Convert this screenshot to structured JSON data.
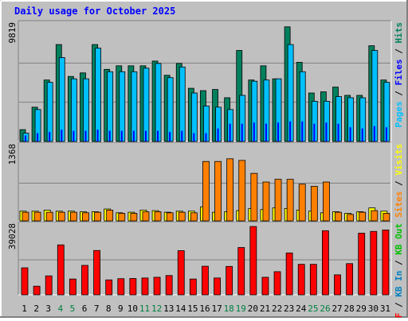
{
  "title": "Daily usage for October 2025",
  "colors": {
    "background": "#C0C0C0",
    "title": "#0000FF",
    "hits": "#00805C",
    "files": "#0000FF",
    "pages": "#00C0FF",
    "visits": "#FFFF00",
    "sites": "#FF8000",
    "kb_in": "#00C000",
    "kb_out": "#0080C0",
    "kbytes": "#FF0000",
    "weekend_day": "#008040",
    "weekday": "#000000"
  },
  "chart_data": [
    {
      "type": "bar",
      "panel": "hits-files-pages",
      "y_tick_label": "9819",
      "ylim": [
        0,
        9819
      ],
      "grid": true,
      "legend_labels": [
        "Pages",
        "Files",
        "Hits"
      ],
      "categories": [
        "1",
        "2",
        "3",
        "4",
        "5",
        "6",
        "7",
        "8",
        "9",
        "10",
        "11",
        "12",
        "13",
        "14",
        "15",
        "16",
        "17",
        "18",
        "19",
        "20",
        "21",
        "22",
        "23",
        "24",
        "25",
        "26",
        "27",
        "28",
        "29",
        "30",
        "31"
      ],
      "series": [
        {
          "name": "Hits",
          "values": [
            1000,
            2900,
            5200,
            8200,
            5500,
            5800,
            8200,
            6100,
            6400,
            6400,
            6400,
            6800,
            5600,
            6600,
            4500,
            4300,
            4400,
            3700,
            7700,
            5200,
            6400,
            5300,
            9700,
            6700,
            4100,
            4200,
            4600,
            3900,
            3900,
            8100,
            5200
          ]
        },
        {
          "name": "Files",
          "values": [
            500,
            700,
            800,
            1000,
            900,
            900,
            1000,
            900,
            900,
            900,
            900,
            900,
            800,
            900,
            700,
            700,
            1100,
            1500,
            1500,
            1600,
            1500,
            1600,
            1700,
            1700,
            1500,
            1600,
            1500,
            1200,
            1100,
            1300,
            1200
          ]
        },
        {
          "name": "Pages",
          "values": [
            700,
            2700,
            5000,
            7100,
            5300,
            5300,
            7900,
            5900,
            5900,
            5900,
            6200,
            6600,
            5400,
            6300,
            4100,
            3000,
            2900,
            2700,
            3900,
            5100,
            5200,
            5300,
            8200,
            5900,
            3400,
            3400,
            3800,
            3700,
            3700,
            7700,
            5000
          ]
        }
      ]
    },
    {
      "type": "bar",
      "panel": "visits-sites",
      "y_tick_label": "1368",
      "ylim": [
        0,
        1368
      ],
      "grid": true,
      "legend_labels": [
        "Sites",
        "Visits"
      ],
      "categories": [
        "1",
        "2",
        "3",
        "4",
        "5",
        "6",
        "7",
        "8",
        "9",
        "10",
        "11",
        "12",
        "13",
        "14",
        "15",
        "16",
        "17",
        "18",
        "19",
        "20",
        "21",
        "22",
        "23",
        "24",
        "25",
        "26",
        "27",
        "28",
        "29",
        "30",
        "31"
      ],
      "series": [
        {
          "name": "Visits",
          "values": [
            180,
            180,
            200,
            180,
            180,
            170,
            170,
            220,
            150,
            160,
            200,
            190,
            160,
            180,
            180,
            260,
            160,
            170,
            190,
            230,
            210,
            240,
            230,
            200,
            180,
            150,
            170,
            140,
            170,
            240,
            180
          ]
        },
        {
          "name": "Sites",
          "values": [
            160,
            160,
            160,
            160,
            160,
            150,
            160,
            200,
            140,
            140,
            170,
            170,
            150,
            160,
            150,
            1100,
            1100,
            1150,
            1120,
            880,
            720,
            770,
            770,
            680,
            640,
            720,
            160,
            120,
            160,
            190,
            140
          ]
        }
      ]
    },
    {
      "type": "bar",
      "panel": "kbytes",
      "y_tick_label": "39028",
      "ylim": [
        0,
        39028
      ],
      "grid": true,
      "legend_labels": [
        "KB F",
        "KB In",
        "KB Out"
      ],
      "categories": [
        "1",
        "2",
        "3",
        "4",
        "5",
        "6",
        "7",
        "8",
        "9",
        "10",
        "11",
        "12",
        "13",
        "14",
        "15",
        "16",
        "17",
        "18",
        "19",
        "20",
        "21",
        "22",
        "23",
        "24",
        "25",
        "26",
        "27",
        "28",
        "29",
        "30",
        "31"
      ],
      "series": [
        {
          "name": "KB F",
          "values": [
            15400,
            4900,
            10800,
            28500,
            9000,
            16800,
            25300,
            8500,
            9200,
            9300,
            9600,
            10000,
            11000,
            25200,
            9000,
            16300,
            9600,
            16200,
            27000,
            39000,
            10000,
            13200,
            23900,
            17400,
            17400,
            36600,
            11400,
            17800,
            35200,
            36200,
            37000
          ]
        }
      ]
    }
  ],
  "x_labels": {
    "days": [
      "1",
      "2",
      "3",
      "4",
      "5",
      "6",
      "7",
      "8",
      "9",
      "10",
      "11",
      "12",
      "13",
      "14",
      "15",
      "16",
      "17",
      "18",
      "19",
      "20",
      "21",
      "22",
      "23",
      "24",
      "25",
      "26",
      "27",
      "28",
      "29",
      "30",
      "31"
    ],
    "weekend": [
      false,
      false,
      false,
      true,
      true,
      false,
      false,
      false,
      false,
      false,
      true,
      true,
      false,
      false,
      false,
      false,
      false,
      true,
      true,
      false,
      false,
      false,
      false,
      false,
      true,
      true,
      false,
      false,
      false,
      false,
      false
    ]
  }
}
